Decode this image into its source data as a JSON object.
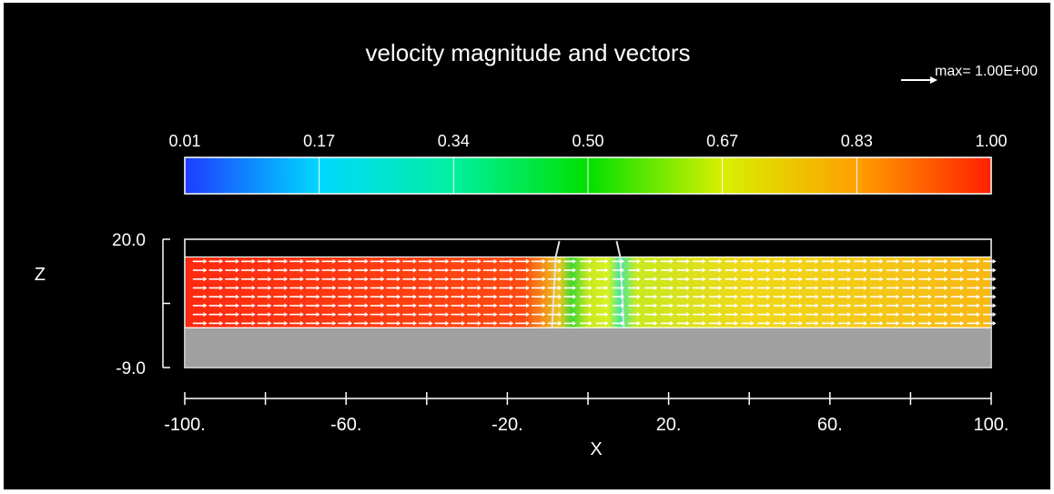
{
  "colors": {
    "background": "#000000",
    "foreground": "#ffffff",
    "ground": "#a0a0a0",
    "colormap": [
      "#1e3cff",
      "#00d8ff",
      "#00f0a0",
      "#00e000",
      "#d8f000",
      "#ffa000",
      "#ff2000"
    ]
  },
  "chart_data": {
    "type": "heatmap",
    "title": "velocity magnitude and vectors",
    "reference_vector": {
      "label": "max= 1.00E+00",
      "value": 1.0
    },
    "colorbar": {
      "ticks": [
        "0.01",
        "0.17",
        "0.34",
        "0.50",
        "0.67",
        "0.83",
        "1.00"
      ],
      "range": [
        0.01,
        1.0
      ]
    },
    "xlabel": "X",
    "ylabel": "Z",
    "xlim": [
      -100,
      100
    ],
    "ylim": [
      -9.0,
      20.0
    ],
    "x_ticks": [
      -100,
      -80,
      -60,
      -40,
      -20,
      0,
      20,
      40,
      60,
      80,
      100
    ],
    "x_tick_labels": [
      {
        "x": -100,
        "label": "-100."
      },
      {
        "x": -60,
        "label": "-60."
      },
      {
        "x": -20,
        "label": "-20."
      },
      {
        "x": 20,
        "label": "20."
      },
      {
        "x": 60,
        "label": "60."
      },
      {
        "x": 100,
        "label": "100."
      }
    ],
    "y_ticks": [
      20.0,
      5.5,
      -9.0
    ],
    "y_tick_labels": [
      {
        "y": 20.0,
        "label": "20.0"
      },
      {
        "y": -9.0,
        "label": "-9.0"
      }
    ],
    "fields": {
      "water_surface_z": 16.0,
      "bed_z": 0.0,
      "structure_x": [
        -8.0,
        8.0
      ],
      "regions": [
        {
          "x": [
            -100,
            -10
          ],
          "velocity": 0.95
        },
        {
          "x": [
            -10,
            10
          ],
          "velocity": 0.6
        },
        {
          "x": [
            10,
            100
          ],
          "velocity": 0.74
        }
      ],
      "vector_rows_z": [
        15.0,
        13.0,
        11.0,
        9.0,
        7.0,
        5.0,
        3.0,
        1.0
      ]
    }
  }
}
